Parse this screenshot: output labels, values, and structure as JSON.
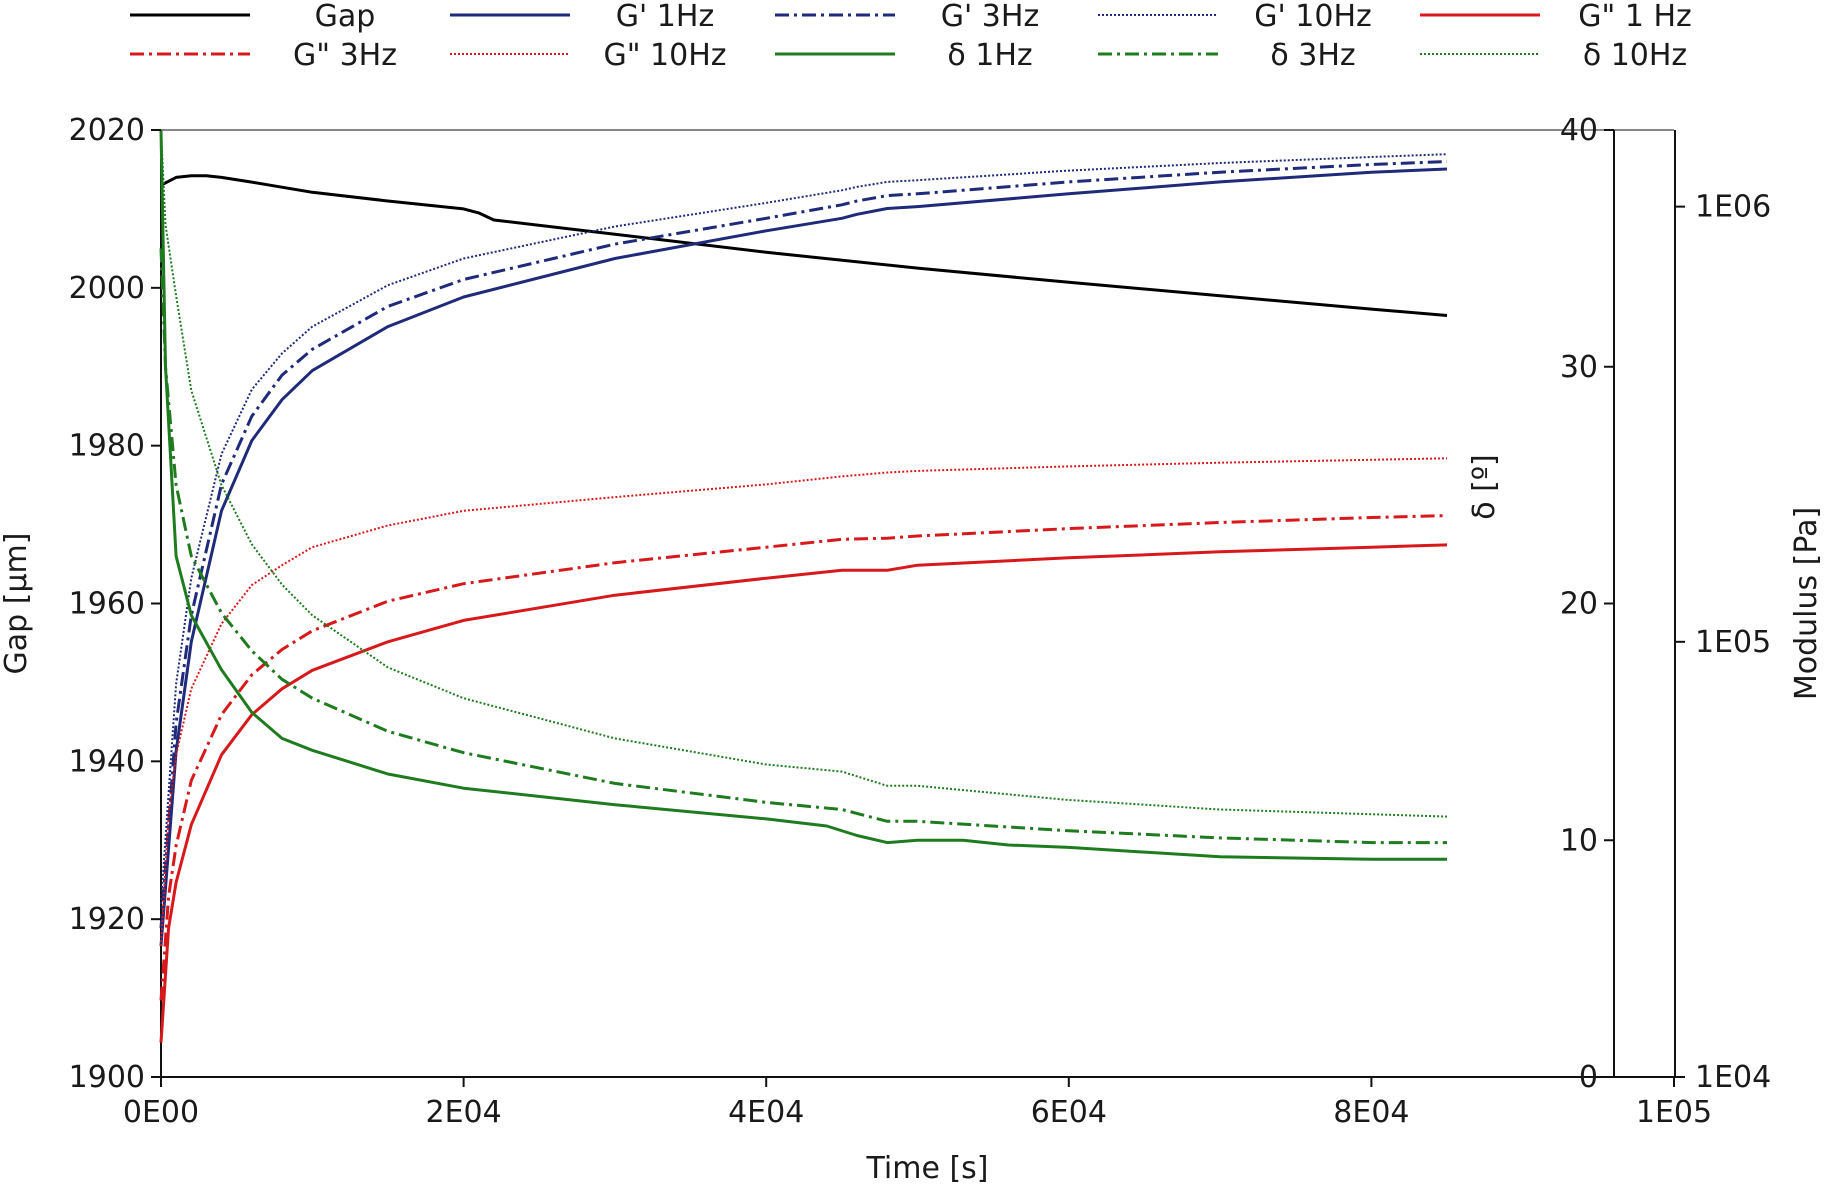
{
  "chart_data": {
    "type": "line",
    "title": "",
    "xlabel": "Time [s]",
    "ylabel_left": "Gap [µm]",
    "ylabel_delta": "δ [º]",
    "ylabel_modulus": "Modulus [Pa]",
    "xlim": [
      0,
      100000
    ],
    "ylim_gap": [
      1900,
      2020
    ],
    "ylim_delta": [
      0,
      40
    ],
    "ylim_modulus_log": [
      10000,
      1500000
    ],
    "x_ticks": [
      0,
      20000,
      40000,
      60000,
      80000,
      100000
    ],
    "x_tick_labels": [
      "0E00",
      "2E04",
      "4E04",
      "6E04",
      "8E04",
      "1E05"
    ],
    "gap_ticks": [
      1900,
      1920,
      1940,
      1960,
      1980,
      2000,
      2020
    ],
    "gap_tick_labels": [
      "1900",
      "1920",
      "1940",
      "1960",
      "1980",
      "2000",
      "2020"
    ],
    "delta_ticks": [
      0,
      10,
      20,
      30,
      40
    ],
    "delta_tick_labels": [
      "0",
      "10",
      "20",
      "30",
      "40"
    ],
    "modulus_ticks": [
      10000,
      100000,
      1000000
    ],
    "modulus_tick_labels": [
      "1E04",
      "1E05",
      "1E06"
    ],
    "legend_position": "top",
    "series": [
      {
        "name": "Gap",
        "axis": "gap",
        "color": "#000000",
        "dash": "solid",
        "x": [
          0,
          1000,
          2000,
          3000,
          4000,
          6000,
          10000,
          15000,
          20000,
          21000,
          22000,
          30000,
          40000,
          50000,
          60000,
          70000,
          80000,
          85000
        ],
        "y": [
          2013,
          2014,
          2014.2,
          2014.2,
          2014,
          2013.4,
          2012.1,
          2011,
          2010,
          2009.5,
          2008.6,
          2006.8,
          2004.5,
          2002.5,
          2000.7,
          1999,
          1997.3,
          1996.5
        ]
      },
      {
        "name": "G' 1Hz",
        "axis": "modulus",
        "color": "#1f2a7a",
        "dash": "solid",
        "x": [
          0,
          1000,
          2000,
          4000,
          6000,
          8000,
          10000,
          15000,
          20000,
          30000,
          40000,
          45000,
          46000,
          48000,
          50000,
          60000,
          70000,
          80000,
          85000
        ],
        "y": [
          20000,
          56000,
          100000,
          200000,
          290000,
          360000,
          420000,
          530000,
          620000,
          760000,
          880000,
          940000,
          960000,
          990000,
          1000000,
          1070000,
          1140000,
          1200000,
          1220000
        ]
      },
      {
        "name": "G' 3Hz",
        "axis": "modulus",
        "color": "#1f2a7a",
        "dash": "dashdot",
        "x": [
          0,
          1000,
          2000,
          4000,
          6000,
          8000,
          10000,
          15000,
          20000,
          30000,
          40000,
          45000,
          46000,
          48000,
          50000,
          60000,
          70000,
          80000,
          85000
        ],
        "y": [
          22000,
          65000,
          115000,
          230000,
          330000,
          410000,
          470000,
          590000,
          680000,
          820000,
          940000,
          1010000,
          1030000,
          1060000,
          1070000,
          1140000,
          1200000,
          1250000,
          1270000
        ]
      },
      {
        "name": "G' 10Hz",
        "axis": "modulus",
        "color": "#1f2a7a",
        "dash": "dot",
        "x": [
          0,
          1000,
          2000,
          4000,
          6000,
          8000,
          10000,
          15000,
          20000,
          30000,
          40000,
          45000,
          46000,
          48000,
          50000,
          60000,
          70000,
          80000,
          85000
        ],
        "y": [
          25000,
          80000,
          140000,
          270000,
          380000,
          460000,
          530000,
          660000,
          760000,
          900000,
          1020000,
          1090000,
          1110000,
          1140000,
          1150000,
          1210000,
          1260000,
          1300000,
          1320000
        ]
      },
      {
        "name": "G\" 1 Hz",
        "axis": "modulus",
        "color": "#d7191c",
        "dash": "solid",
        "x": [
          0,
          500,
          1000,
          2000,
          4000,
          6000,
          8000,
          10000,
          15000,
          20000,
          30000,
          40000,
          45000,
          48000,
          50000,
          60000,
          70000,
          80000,
          85000
        ],
        "y": [
          12000,
          22000,
          28000,
          38000,
          55000,
          68000,
          78000,
          86000,
          100000,
          112000,
          128000,
          140000,
          146000,
          146000,
          150000,
          156000,
          161000,
          165000,
          167000
        ]
      },
      {
        "name": "G\" 3Hz",
        "axis": "modulus",
        "color": "#d7191c",
        "dash": "dashdot",
        "x": [
          0,
          500,
          1000,
          2000,
          4000,
          6000,
          8000,
          10000,
          15000,
          20000,
          30000,
          40000,
          45000,
          48000,
          50000,
          60000,
          70000,
          80000,
          85000
        ],
        "y": [
          15000,
          26000,
          34000,
          48000,
          68000,
          84000,
          96000,
          106000,
          124000,
          136000,
          152000,
          165000,
          172000,
          173000,
          175000,
          182000,
          188000,
          193000,
          195000
        ]
      },
      {
        "name": "G\" 10Hz",
        "axis": "modulus",
        "color": "#d7191c",
        "dash": "dot",
        "x": [
          0,
          500,
          1000,
          2000,
          4000,
          6000,
          8000,
          10000,
          15000,
          20000,
          30000,
          40000,
          45000,
          48000,
          50000,
          60000,
          70000,
          80000,
          85000
        ],
        "y": [
          20000,
          40000,
          55000,
          78000,
          110000,
          135000,
          150000,
          165000,
          185000,
          200000,
          215000,
          230000,
          240000,
          245000,
          247000,
          253000,
          258000,
          262000,
          264000
        ]
      },
      {
        "name": "δ  1Hz",
        "axis": "delta",
        "color": "#1e7b1e",
        "dash": "solid",
        "x": [
          0,
          300,
          1000,
          2000,
          4000,
          6000,
          8000,
          10000,
          15000,
          20000,
          30000,
          40000,
          44000,
          46000,
          48000,
          50000,
          53000,
          56000,
          60000,
          70000,
          80000,
          85000
        ],
        "y": [
          40,
          30,
          22,
          19.5,
          17.2,
          15.4,
          14.3,
          13.8,
          12.8,
          12.2,
          11.5,
          10.9,
          10.6,
          10.2,
          9.9,
          10.0,
          10.0,
          9.8,
          9.7,
          9.3,
          9.2,
          9.2
        ]
      },
      {
        "name": "δ  3Hz",
        "axis": "delta",
        "color": "#1e7b1e",
        "dash": "dashdot",
        "x": [
          0,
          300,
          1000,
          2000,
          4000,
          6000,
          8000,
          10000,
          15000,
          20000,
          30000,
          40000,
          45000,
          48000,
          50000,
          60000,
          70000,
          80000,
          85000
        ],
        "y": [
          35,
          30,
          25,
          22,
          19.6,
          18,
          16.8,
          16,
          14.6,
          13.7,
          12.4,
          11.6,
          11.3,
          10.8,
          10.8,
          10.4,
          10.1,
          9.9,
          9.9
        ]
      },
      {
        "name": "δ  10Hz",
        "axis": "delta",
        "color": "#1e7b1e",
        "dash": "dot",
        "x": [
          0,
          300,
          1000,
          2000,
          4000,
          6000,
          8000,
          10000,
          15000,
          20000,
          30000,
          40000,
          45000,
          48000,
          50000,
          60000,
          70000,
          80000,
          85000
        ],
        "y": [
          40,
          36,
          33,
          29,
          25,
          22.5,
          20.8,
          19.5,
          17.3,
          16,
          14.3,
          13.2,
          12.9,
          12.3,
          12.3,
          11.7,
          11.3,
          11.1,
          11.0
        ]
      }
    ]
  }
}
